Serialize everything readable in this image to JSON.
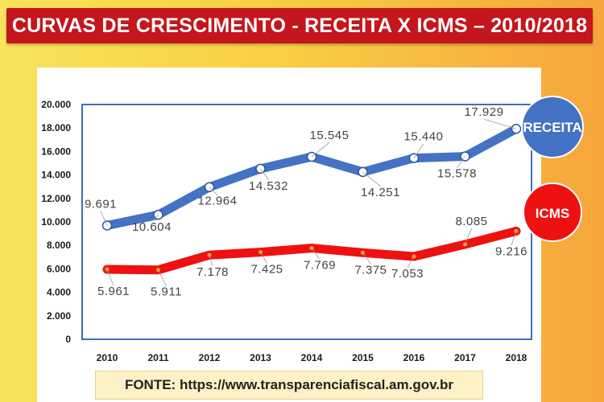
{
  "title": "CURVAS DE CRESCIMENTO - RECEITA X ICMS – 2010/2018",
  "source": "FONTE: https://www.transparenciafiscal.am.gov.br",
  "chart_data": {
    "type": "line",
    "x": [
      "2010",
      "2011",
      "2012",
      "2013",
      "2014",
      "2015",
      "2016",
      "2017",
      "2018"
    ],
    "ylim": [
      0,
      20000
    ],
    "yticks": [
      "0",
      "2.000",
      "4.000",
      "6.000",
      "8.000",
      "10.000",
      "12.000",
      "14.000",
      "16.000",
      "18.000",
      "20.000"
    ],
    "grid": false,
    "legend": "right (badges at line ends)",
    "series": [
      {
        "name": "RECEITA",
        "color": "#4472c4",
        "values": [
          9691,
          10604,
          12964,
          14532,
          15545,
          14251,
          15440,
          15578,
          17929
        ],
        "labels": [
          "9.691",
          "10.604",
          "12.964",
          "14.532",
          "15.545",
          "14.251",
          "15.440",
          "15.578",
          "17.929"
        ]
      },
      {
        "name": "ICMS",
        "color": "#ee1111",
        "values": [
          5961,
          5911,
          7178,
          7425,
          7769,
          7375,
          7053,
          8085,
          9216
        ],
        "labels": [
          "5.961",
          "5.911",
          "7.178",
          "7.425",
          "7.769",
          "7.375",
          "7.053",
          "8.085",
          "9.216"
        ]
      }
    ]
  }
}
